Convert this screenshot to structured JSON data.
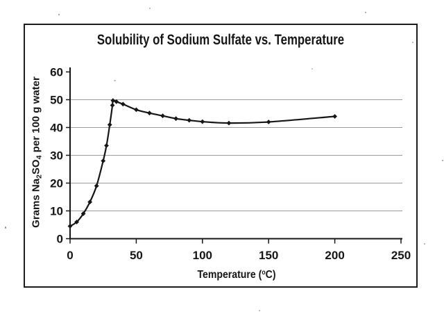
{
  "colors": {
    "ink": "#161616",
    "grid": "#9a9a9a",
    "paper": "#ffffff"
  },
  "chart_data": {
    "type": "line",
    "title": "Solubility of Sodium Sulfate vs. Temperature",
    "xlabel": "Temperature (°C)",
    "ylabel": "Grams Na₂SO₄ per 100 g water",
    "xlabel_parts": [
      {
        "t": "Temperature ("
      },
      {
        "t": "o",
        "s": "sup"
      },
      {
        "t": "C)"
      }
    ],
    "ylabel_parts": [
      {
        "t": "Grams Na"
      },
      {
        "t": "2",
        "s": "sub"
      },
      {
        "t": "SO"
      },
      {
        "t": "4",
        "s": "sub"
      },
      {
        "t": " per 100 g water"
      }
    ],
    "xlim": [
      0,
      250
    ],
    "ylim": [
      0,
      60
    ],
    "xticks": [
      0,
      50,
      100,
      150,
      200,
      250
    ],
    "yticks": [
      0,
      10,
      20,
      30,
      40,
      50,
      60
    ],
    "gridlines": [
      10,
      20,
      30,
      40,
      50
    ],
    "grid": "horizontal only",
    "legend": "none",
    "marker": "filled diamond",
    "x": [
      0,
      5,
      10,
      15,
      20,
      25,
      27.5,
      30,
      32,
      32.4,
      35,
      40,
      50,
      60,
      70,
      80,
      90,
      100,
      120,
      150,
      200
    ],
    "y": [
      4.5,
      6.0,
      9.0,
      13.2,
      19.0,
      28.0,
      33.5,
      41.0,
      48.0,
      49.7,
      49.3,
      48.4,
      46.4,
      45.2,
      44.2,
      43.2,
      42.6,
      42.1,
      41.6,
      42.0,
      44.0
    ]
  }
}
